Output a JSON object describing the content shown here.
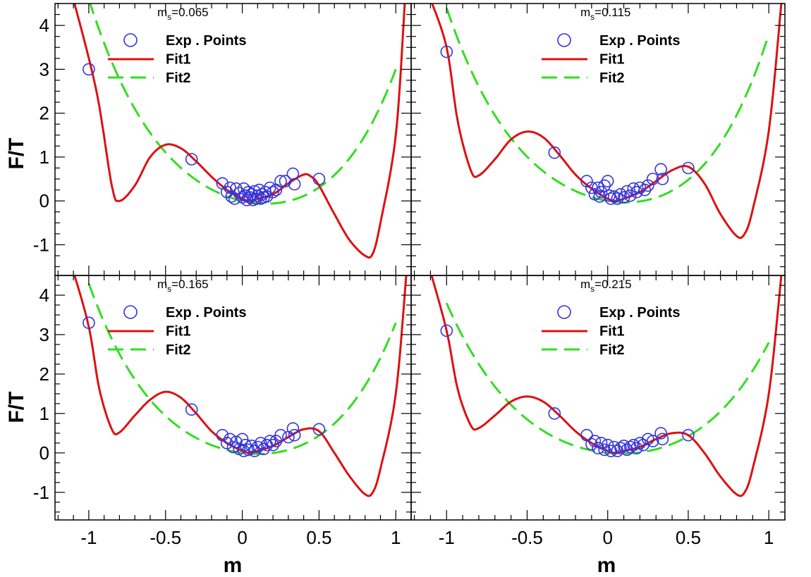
{
  "figure": {
    "ylabel": "F/T",
    "xlabel": "m",
    "colors": {
      "exp": "#3333dd",
      "fit1": "#dd1111",
      "fit2": "#33dd22",
      "frame": "#000000"
    }
  },
  "chart_data": [
    {
      "type": "scatter",
      "title": "m_s=0.065",
      "title_main": "m",
      "title_sub": "s",
      "title_rest": "=0.065",
      "xlim": [
        -1.22,
        1.1
      ],
      "ylim": [
        -1.7,
        4.5
      ],
      "xticks": [],
      "yticks": [
        -1,
        0,
        1,
        2,
        3,
        4
      ],
      "xlabel": "",
      "ylabel": "F/T",
      "legend": [
        "Exp . Points",
        "Fit1",
        "Fit2"
      ],
      "legend_position": "top-left",
      "fit1": {
        "knots": [
          [
            -1.1,
            4.6
          ],
          [
            -0.95,
            2.5
          ],
          [
            -0.85,
            0.35
          ],
          [
            -0.8,
            0.0
          ],
          [
            -0.7,
            0.35
          ],
          [
            -0.6,
            1.0
          ],
          [
            -0.5,
            1.28
          ],
          [
            -0.4,
            1.2
          ],
          [
            -0.3,
            0.9
          ],
          [
            -0.2,
            0.55
          ],
          [
            -0.1,
            0.25
          ],
          [
            0.0,
            0.05
          ],
          [
            0.05,
            0.0
          ],
          [
            0.1,
            0.05
          ],
          [
            0.2,
            0.15
          ],
          [
            0.3,
            0.4
          ],
          [
            0.4,
            0.6
          ],
          [
            0.45,
            0.55
          ],
          [
            0.5,
            0.35
          ],
          [
            0.6,
            -0.3
          ],
          [
            0.7,
            -0.9
          ],
          [
            0.8,
            -1.25
          ],
          [
            0.85,
            -1.2
          ],
          [
            0.9,
            -0.5
          ],
          [
            1.0,
            1.5
          ],
          [
            1.06,
            4.6
          ]
        ]
      },
      "fit2": {
        "coeffs": [
          0.0,
          -0.8,
          2.5,
          0.0,
          1.3
        ],
        "xrange": [
          -1.0,
          1.0
        ]
      },
      "exp_points": [
        [
          -1.0,
          3.0
        ],
        [
          -0.33,
          0.95
        ],
        [
          -0.13,
          0.4
        ],
        [
          -0.1,
          0.2
        ],
        [
          -0.08,
          0.3
        ],
        [
          -0.07,
          0.1
        ],
        [
          -0.05,
          0.05
        ],
        [
          -0.04,
          0.28
        ],
        [
          -0.02,
          0.18
        ],
        [
          0.0,
          0.08
        ],
        [
          0.01,
          0.28
        ],
        [
          0.02,
          0.12
        ],
        [
          0.03,
          0.02
        ],
        [
          0.04,
          0.2
        ],
        [
          0.05,
          0.08
        ],
        [
          0.06,
          0.15
        ],
        [
          0.07,
          0.02
        ],
        [
          0.08,
          0.22
        ],
        [
          0.09,
          0.05
        ],
        [
          0.1,
          0.12
        ],
        [
          0.11,
          0.25
        ],
        [
          0.12,
          0.05
        ],
        [
          0.13,
          0.15
        ],
        [
          0.14,
          0.08
        ],
        [
          0.15,
          0.2
        ],
        [
          0.16,
          0.1
        ],
        [
          0.18,
          0.3
        ],
        [
          0.2,
          0.2
        ],
        [
          0.22,
          0.25
        ],
        [
          0.25,
          0.45
        ],
        [
          0.28,
          0.45
        ],
        [
          0.33,
          0.62
        ],
        [
          0.34,
          0.38
        ],
        [
          0.5,
          0.5
        ]
      ]
    },
    {
      "type": "scatter",
      "title": "m_s=0.115",
      "title_main": "m",
      "title_sub": "s",
      "title_rest": "=0.115",
      "xlim": [
        -1.22,
        1.1
      ],
      "ylim": [
        -1.7,
        4.5
      ],
      "xticks": [],
      "yticks": [],
      "xlabel": "",
      "ylabel": "",
      "legend": [
        "Exp . Points",
        "Fit1",
        "Fit2"
      ],
      "legend_position": "top-left",
      "fit1": {
        "knots": [
          [
            -1.1,
            4.6
          ],
          [
            -1.0,
            3.5
          ],
          [
            -0.93,
            1.8
          ],
          [
            -0.85,
            0.7
          ],
          [
            -0.8,
            0.58
          ],
          [
            -0.7,
            0.95
          ],
          [
            -0.6,
            1.4
          ],
          [
            -0.5,
            1.58
          ],
          [
            -0.4,
            1.45
          ],
          [
            -0.3,
            1.05
          ],
          [
            -0.2,
            0.6
          ],
          [
            -0.1,
            0.28
          ],
          [
            0.0,
            0.05
          ],
          [
            0.05,
            0.0
          ],
          [
            0.1,
            0.05
          ],
          [
            0.2,
            0.2
          ],
          [
            0.3,
            0.45
          ],
          [
            0.4,
            0.7
          ],
          [
            0.5,
            0.78
          ],
          [
            0.6,
            0.4
          ],
          [
            0.7,
            -0.3
          ],
          [
            0.8,
            -0.8
          ],
          [
            0.85,
            -0.75
          ],
          [
            0.9,
            -0.2
          ],
          [
            1.0,
            1.6
          ],
          [
            1.08,
            4.6
          ]
        ]
      },
      "fit2": {
        "coeffs": [
          0.0,
          -0.6,
          2.6,
          0.3,
          1.5
        ],
        "xrange": [
          -1.0,
          1.0
        ]
      },
      "exp_points": [
        [
          -1.0,
          3.4
        ],
        [
          -0.33,
          1.1
        ],
        [
          -0.13,
          0.45
        ],
        [
          -0.1,
          0.3
        ],
        [
          -0.08,
          0.15
        ],
        [
          -0.06,
          0.3
        ],
        [
          -0.05,
          0.1
        ],
        [
          -0.04,
          0.2
        ],
        [
          -0.02,
          0.35
        ],
        [
          0.0,
          0.45
        ],
        [
          0.01,
          0.12
        ],
        [
          0.02,
          0.05
        ],
        [
          0.04,
          0.1
        ],
        [
          0.06,
          0.05
        ],
        [
          0.08,
          0.15
        ],
        [
          0.1,
          0.08
        ],
        [
          0.12,
          0.22
        ],
        [
          0.14,
          0.12
        ],
        [
          0.16,
          0.28
        ],
        [
          0.18,
          0.2
        ],
        [
          0.2,
          0.3
        ],
        [
          0.23,
          0.25
        ],
        [
          0.25,
          0.35
        ],
        [
          0.28,
          0.5
        ],
        [
          0.33,
          0.72
        ],
        [
          0.34,
          0.5
        ],
        [
          0.5,
          0.75
        ]
      ]
    },
    {
      "type": "scatter",
      "title": "m_s=0.165",
      "title_main": "m",
      "title_sub": "s",
      "title_rest": "=0.165",
      "xlim": [
        -1.22,
        1.1
      ],
      "ylim": [
        -1.7,
        4.5
      ],
      "xticks": [
        -1,
        -0.5,
        0,
        0.5,
        1
      ],
      "yticks": [
        -1,
        0,
        1,
        2,
        3,
        4
      ],
      "xlabel": "m",
      "ylabel": "F/T",
      "legend": [
        "Exp . Points",
        "Fit1",
        "Fit2"
      ],
      "legend_position": "top-left",
      "fit1": {
        "knots": [
          [
            -1.1,
            4.6
          ],
          [
            -1.0,
            3.2
          ],
          [
            -0.93,
            1.6
          ],
          [
            -0.85,
            0.6
          ],
          [
            -0.8,
            0.52
          ],
          [
            -0.7,
            0.95
          ],
          [
            -0.6,
            1.35
          ],
          [
            -0.5,
            1.55
          ],
          [
            -0.4,
            1.4
          ],
          [
            -0.3,
            1.0
          ],
          [
            -0.2,
            0.55
          ],
          [
            -0.1,
            0.25
          ],
          [
            0.0,
            0.05
          ],
          [
            0.05,
            0.0
          ],
          [
            0.1,
            0.05
          ],
          [
            0.2,
            0.18
          ],
          [
            0.3,
            0.4
          ],
          [
            0.4,
            0.6
          ],
          [
            0.5,
            0.55
          ],
          [
            0.6,
            0.0
          ],
          [
            0.7,
            -0.6
          ],
          [
            0.8,
            -1.05
          ],
          [
            0.85,
            -1.0
          ],
          [
            0.9,
            -0.4
          ],
          [
            1.0,
            1.5
          ],
          [
            1.07,
            4.6
          ]
        ]
      },
      "fit2": {
        "coeffs": [
          0.0,
          -0.5,
          2.4,
          0.0,
          1.4
        ],
        "xrange": [
          -1.0,
          1.0
        ]
      },
      "exp_points": [
        [
          -1.0,
          3.3
        ],
        [
          -0.33,
          1.1
        ],
        [
          -0.13,
          0.45
        ],
        [
          -0.1,
          0.25
        ],
        [
          -0.08,
          0.35
        ],
        [
          -0.06,
          0.15
        ],
        [
          -0.04,
          0.28
        ],
        [
          -0.02,
          0.1
        ],
        [
          0.0,
          0.35
        ],
        [
          0.01,
          0.05
        ],
        [
          0.02,
          0.2
        ],
        [
          0.04,
          0.08
        ],
        [
          0.06,
          0.18
        ],
        [
          0.08,
          0.05
        ],
        [
          0.1,
          0.15
        ],
        [
          0.12,
          0.25
        ],
        [
          0.14,
          0.1
        ],
        [
          0.16,
          0.2
        ],
        [
          0.18,
          0.3
        ],
        [
          0.2,
          0.2
        ],
        [
          0.22,
          0.3
        ],
        [
          0.25,
          0.45
        ],
        [
          0.3,
          0.4
        ],
        [
          0.33,
          0.62
        ],
        [
          0.34,
          0.45
        ],
        [
          0.5,
          0.6
        ]
      ]
    },
    {
      "type": "scatter",
      "title": "m_s=0.215",
      "title_main": "m",
      "title_sub": "s",
      "title_rest": "=0.215",
      "xlim": [
        -1.22,
        1.1
      ],
      "ylim": [
        -1.7,
        4.5
      ],
      "xticks": [
        -1,
        -0.5,
        0,
        0.5,
        1
      ],
      "yticks": [],
      "xlabel": "m",
      "ylabel": "",
      "legend": [
        "Exp . Points",
        "Fit1",
        "Fit2"
      ],
      "legend_position": "top-left",
      "fit1": {
        "knots": [
          [
            -1.1,
            4.6
          ],
          [
            -1.0,
            3.1
          ],
          [
            -0.93,
            1.6
          ],
          [
            -0.85,
            0.7
          ],
          [
            -0.8,
            0.63
          ],
          [
            -0.7,
            0.95
          ],
          [
            -0.6,
            1.3
          ],
          [
            -0.5,
            1.43
          ],
          [
            -0.4,
            1.3
          ],
          [
            -0.3,
            0.95
          ],
          [
            -0.2,
            0.55
          ],
          [
            -0.1,
            0.25
          ],
          [
            0.0,
            0.05
          ],
          [
            0.05,
            0.0
          ],
          [
            0.1,
            0.05
          ],
          [
            0.2,
            0.15
          ],
          [
            0.3,
            0.35
          ],
          [
            0.4,
            0.5
          ],
          [
            0.5,
            0.45
          ],
          [
            0.6,
            0.0
          ],
          [
            0.7,
            -0.6
          ],
          [
            0.8,
            -1.05
          ],
          [
            0.85,
            -1.0
          ],
          [
            0.9,
            -0.4
          ],
          [
            1.0,
            1.5
          ],
          [
            1.08,
            4.6
          ]
        ]
      },
      "fit2": {
        "coeffs": [
          0.0,
          -0.4,
          2.3,
          -0.1,
          1.0
        ],
        "xrange": [
          -1.0,
          1.0
        ]
      },
      "exp_points": [
        [
          -1.0,
          3.1
        ],
        [
          -0.33,
          1.0
        ],
        [
          -0.13,
          0.45
        ],
        [
          -0.1,
          0.22
        ],
        [
          -0.08,
          0.3
        ],
        [
          -0.06,
          0.12
        ],
        [
          -0.04,
          0.25
        ],
        [
          -0.02,
          0.08
        ],
        [
          0.0,
          0.2
        ],
        [
          0.02,
          0.05
        ],
        [
          0.04,
          0.15
        ],
        [
          0.06,
          0.05
        ],
        [
          0.08,
          0.12
        ],
        [
          0.1,
          0.18
        ],
        [
          0.12,
          0.08
        ],
        [
          0.14,
          0.15
        ],
        [
          0.16,
          0.2
        ],
        [
          0.18,
          0.12
        ],
        [
          0.2,
          0.25
        ],
        [
          0.22,
          0.2
        ],
        [
          0.25,
          0.35
        ],
        [
          0.28,
          0.3
        ],
        [
          0.33,
          0.5
        ],
        [
          0.34,
          0.35
        ],
        [
          0.5,
          0.45
        ]
      ]
    }
  ]
}
